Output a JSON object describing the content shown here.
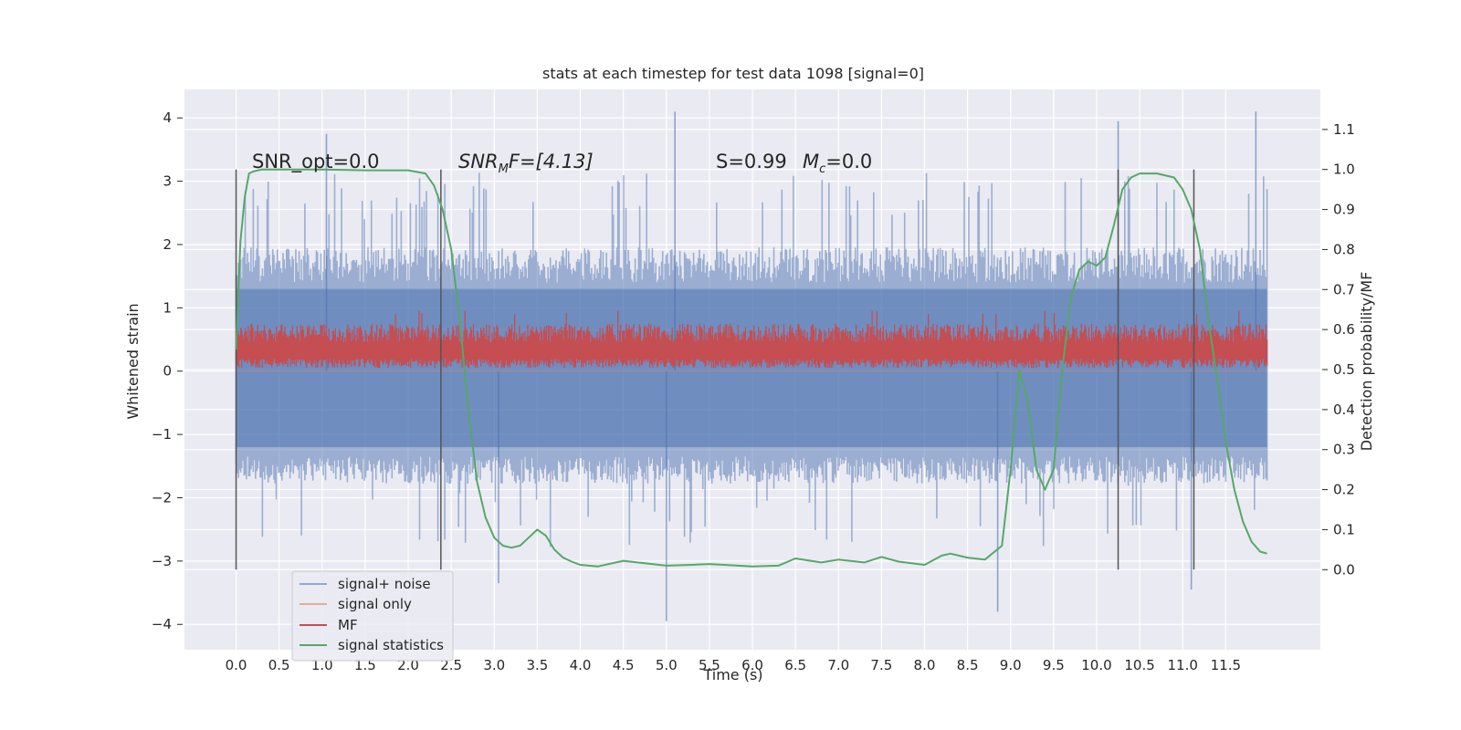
{
  "chart_data": {
    "type": "line",
    "title": "stats at each timestep for test data 1098 [signal=0]",
    "xlabel": "Time (s)",
    "ylabel": "Whitened strain",
    "ylabel_right": "Detection probability/MF",
    "xlim": [
      -0.6,
      12.6
    ],
    "ylim": [
      -4.4,
      4.45
    ],
    "ylim_right": [
      -0.2,
      1.2
    ],
    "x_ticks": [
      "0.0",
      "0.5",
      "1.0",
      "1.5",
      "2.0",
      "2.5",
      "3.0",
      "3.5",
      "4.0",
      "4.5",
      "5.0",
      "5.5",
      "6.0",
      "6.5",
      "7.0",
      "7.5",
      "8.0",
      "8.5",
      "9.0",
      "9.5",
      "10.0",
      "10.5",
      "11.0",
      "11.5"
    ],
    "y_ticks": [
      "4",
      "3",
      "2",
      "1",
      "0",
      "−1",
      "−2",
      "−3",
      "−4"
    ],
    "y_ticks_right": [
      "1.1",
      "1.0",
      "0.9",
      "0.8",
      "0.7",
      "0.6",
      "0.5",
      "0.4",
      "0.3",
      "0.2",
      "0.1",
      "0.0"
    ],
    "grid": true,
    "legend_position": "lower-left",
    "annotations": [
      {
        "text": "SNR_opt=0.0"
      },
      {
        "text": "SNR",
        "sub": "M",
        "tail": "F=[4.13]",
        "italic": true
      },
      {
        "text": "S=0.99",
        "italic_first": true
      },
      {
        "text": "M",
        "sub": "c",
        "tail": "=0.0",
        "italic": true
      }
    ],
    "vertical_markers": [
      0.0,
      2.38,
      10.25,
      11.13
    ],
    "series": [
      {
        "name": "signal+ noise",
        "color": "#4c72b0",
        "axis": "left",
        "envelope": {
          "x_range": [
            0.0,
            11.98
          ],
          "typical_low": -1.8,
          "typical_high": 2.0,
          "peak_high": 4.1,
          "peak_low": -3.95
        },
        "notable_peaks": [
          {
            "x": 1.05,
            "y": 3.75
          },
          {
            "x": 5.1,
            "y": 4.1
          },
          {
            "x": 10.25,
            "y": 3.95
          },
          {
            "x": 11.85,
            "y": 4.1
          },
          {
            "x": 5.0,
            "y": -3.95
          },
          {
            "x": 8.85,
            "y": -3.8
          },
          {
            "x": 3.05,
            "y": -3.35
          },
          {
            "x": 11.1,
            "y": -3.45
          }
        ]
      },
      {
        "name": "signal only",
        "color": "#dd8452",
        "axis": "left",
        "values_note": "flat at 0 (signal=0)"
      },
      {
        "name": "MF",
        "color": "#c44e52",
        "axis": "left",
        "band": {
          "low": 0.05,
          "high": 0.75,
          "mean": 0.3,
          "peaks": [
            0.9,
            0.95,
            0.95,
            0.9,
            0.92
          ]
        }
      },
      {
        "name": "signal statistics",
        "color": "#55a868",
        "axis": "right",
        "x": [
          0.0,
          0.05,
          0.1,
          0.15,
          0.2,
          0.3,
          0.5,
          1.0,
          1.5,
          2.0,
          2.2,
          2.3,
          2.4,
          2.5,
          2.6,
          2.7,
          2.8,
          2.9,
          3.0,
          3.1,
          3.2,
          3.3,
          3.4,
          3.5,
          3.6,
          3.7,
          3.8,
          3.9,
          4.0,
          4.2,
          4.5,
          5.0,
          5.3,
          5.5,
          6.0,
          6.3,
          6.5,
          6.8,
          7.0,
          7.3,
          7.5,
          7.7,
          8.0,
          8.2,
          8.3,
          8.5,
          8.7,
          8.9,
          9.0,
          9.1,
          9.2,
          9.3,
          9.4,
          9.5,
          9.6,
          9.7,
          9.8,
          9.9,
          10.0,
          10.1,
          10.2,
          10.3,
          10.4,
          10.5,
          10.7,
          10.9,
          11.0,
          11.1,
          11.2,
          11.3,
          11.4,
          11.5,
          11.6,
          11.7,
          11.8,
          11.9,
          11.98
        ],
        "values": [
          0.55,
          0.82,
          0.93,
          0.99,
          0.995,
          1.0,
          1.0,
          1.0,
          0.998,
          0.998,
          0.99,
          0.96,
          0.9,
          0.8,
          0.62,
          0.4,
          0.22,
          0.13,
          0.08,
          0.06,
          0.055,
          0.06,
          0.08,
          0.1,
          0.085,
          0.05,
          0.03,
          0.02,
          0.012,
          0.008,
          0.022,
          0.01,
          0.012,
          0.014,
          0.008,
          0.01,
          0.028,
          0.018,
          0.025,
          0.018,
          0.032,
          0.02,
          0.012,
          0.035,
          0.04,
          0.03,
          0.025,
          0.06,
          0.25,
          0.5,
          0.42,
          0.25,
          0.2,
          0.25,
          0.5,
          0.68,
          0.75,
          0.77,
          0.76,
          0.78,
          0.86,
          0.95,
          0.98,
          0.99,
          0.99,
          0.98,
          0.95,
          0.9,
          0.8,
          0.62,
          0.48,
          0.32,
          0.2,
          0.12,
          0.07,
          0.045,
          0.04
        ]
      }
    ]
  }
}
